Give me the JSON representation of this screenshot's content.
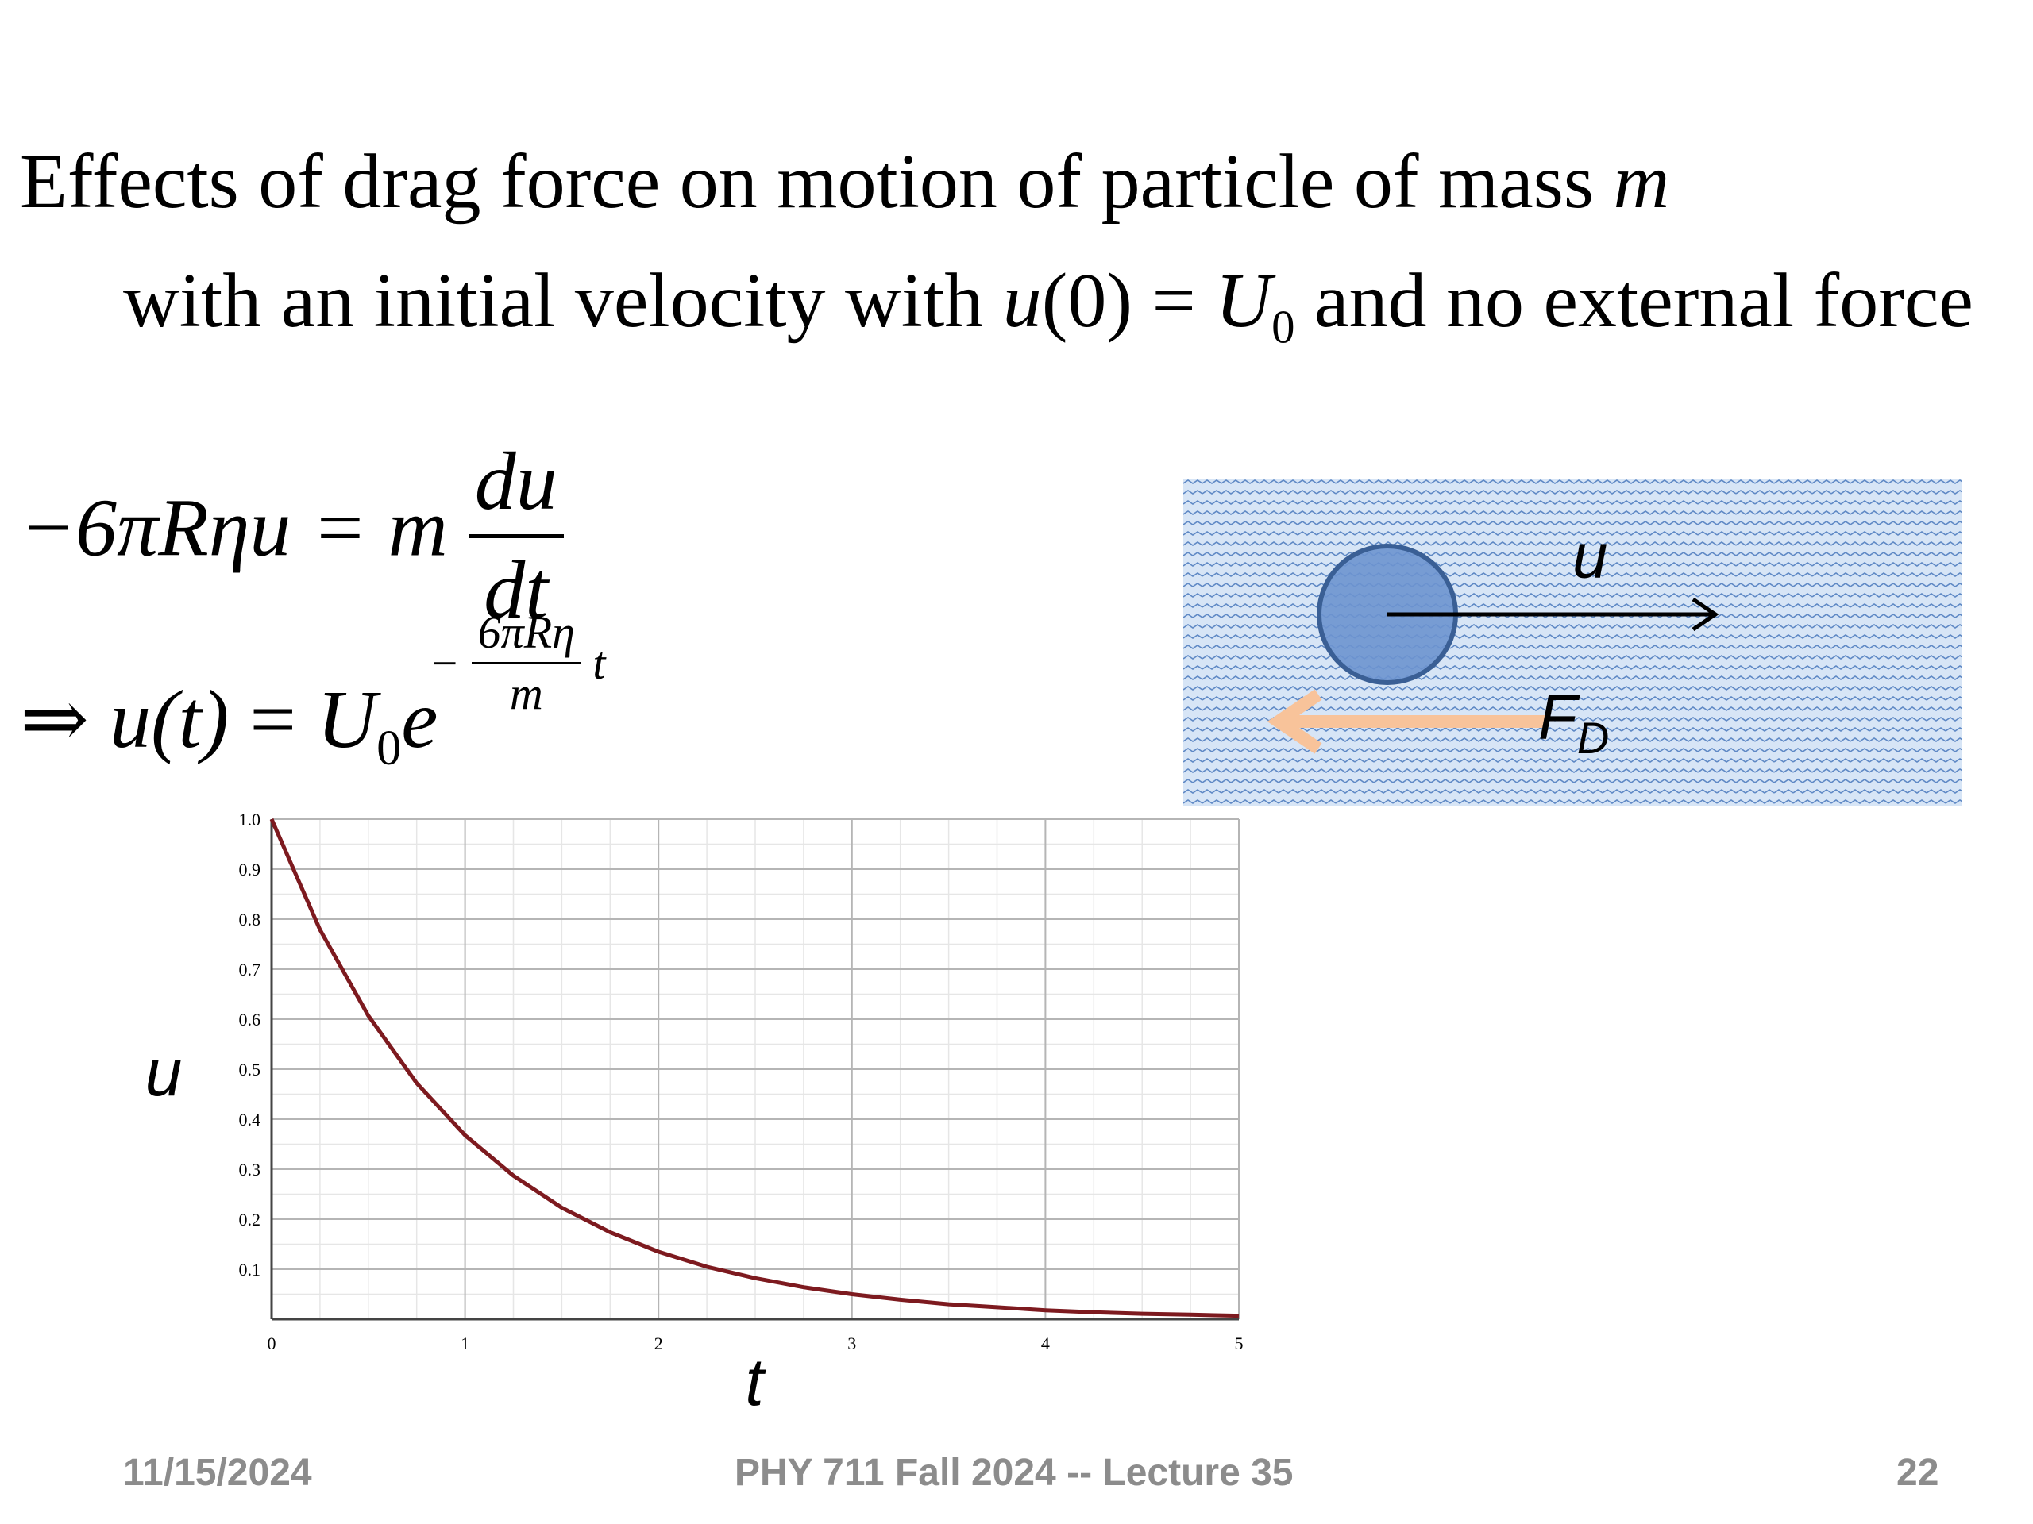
{
  "slide": {
    "title_line1": {
      "text": "Effects of drag force on motion of  particle of mass ",
      "var": "m"
    },
    "title_line2": {
      "pre": "with an initial velocity  with ",
      "u": "u",
      "arg": "(0)",
      "eq": " = ",
      "U": "U",
      "sub": "0",
      "post": " and no external force"
    },
    "eq1": {
      "lhs": "−6πRηu = m",
      "num": "du",
      "den": "dt"
    },
    "eq2": {
      "arrow": "⇒ ",
      "u": "u",
      "arg": "(t)",
      "eq": " = ",
      "U": "U",
      "sub": "0",
      "e": "e",
      "exp_sign": "−",
      "exp_num": "6πRη",
      "exp_den": "m",
      "exp_t": "t"
    },
    "figure": {
      "velocity_label": "u",
      "drag_label": "F",
      "drag_sub": "D",
      "colors": {
        "water_bg": "#cfe0f5",
        "wave_line": "#5f89c5",
        "particle_fill": "#6d94cf",
        "particle_stroke": "#3a5f95",
        "velocity_arrow": "#000000",
        "drag_arrow": "#f8c39a"
      }
    },
    "footer": {
      "date": "11/15/2024",
      "course": "PHY 711  Fall 2024 -- Lecture 35",
      "page": "22"
    }
  },
  "chart_data": {
    "type": "line",
    "xlabel": "t",
    "ylabel": "u",
    "xlim": [
      0,
      5
    ],
    "ylim": [
      0,
      1.0
    ],
    "x_ticks": [
      "0",
      "1",
      "2",
      "3",
      "4",
      "5"
    ],
    "y_ticks": [
      "0.1",
      "0.2",
      "0.3",
      "0.4",
      "0.5",
      "0.6",
      "0.7",
      "0.8",
      "0.9",
      "1.0"
    ],
    "grid": true,
    "line_color": "#7d1a1f",
    "series": [
      {
        "x": [
          0,
          0.25,
          0.5,
          0.75,
          1,
          1.25,
          1.5,
          1.75,
          2,
          2.25,
          2.5,
          2.75,
          3,
          3.25,
          3.5,
          3.75,
          4,
          4.25,
          4.5,
          4.75,
          5
        ],
        "y": [
          1.0,
          0.779,
          0.607,
          0.472,
          0.368,
          0.287,
          0.223,
          0.174,
          0.135,
          0.105,
          0.082,
          0.064,
          0.05,
          0.039,
          0.03,
          0.024,
          0.018,
          0.014,
          0.011,
          0.009,
          0.007
        ]
      }
    ]
  }
}
